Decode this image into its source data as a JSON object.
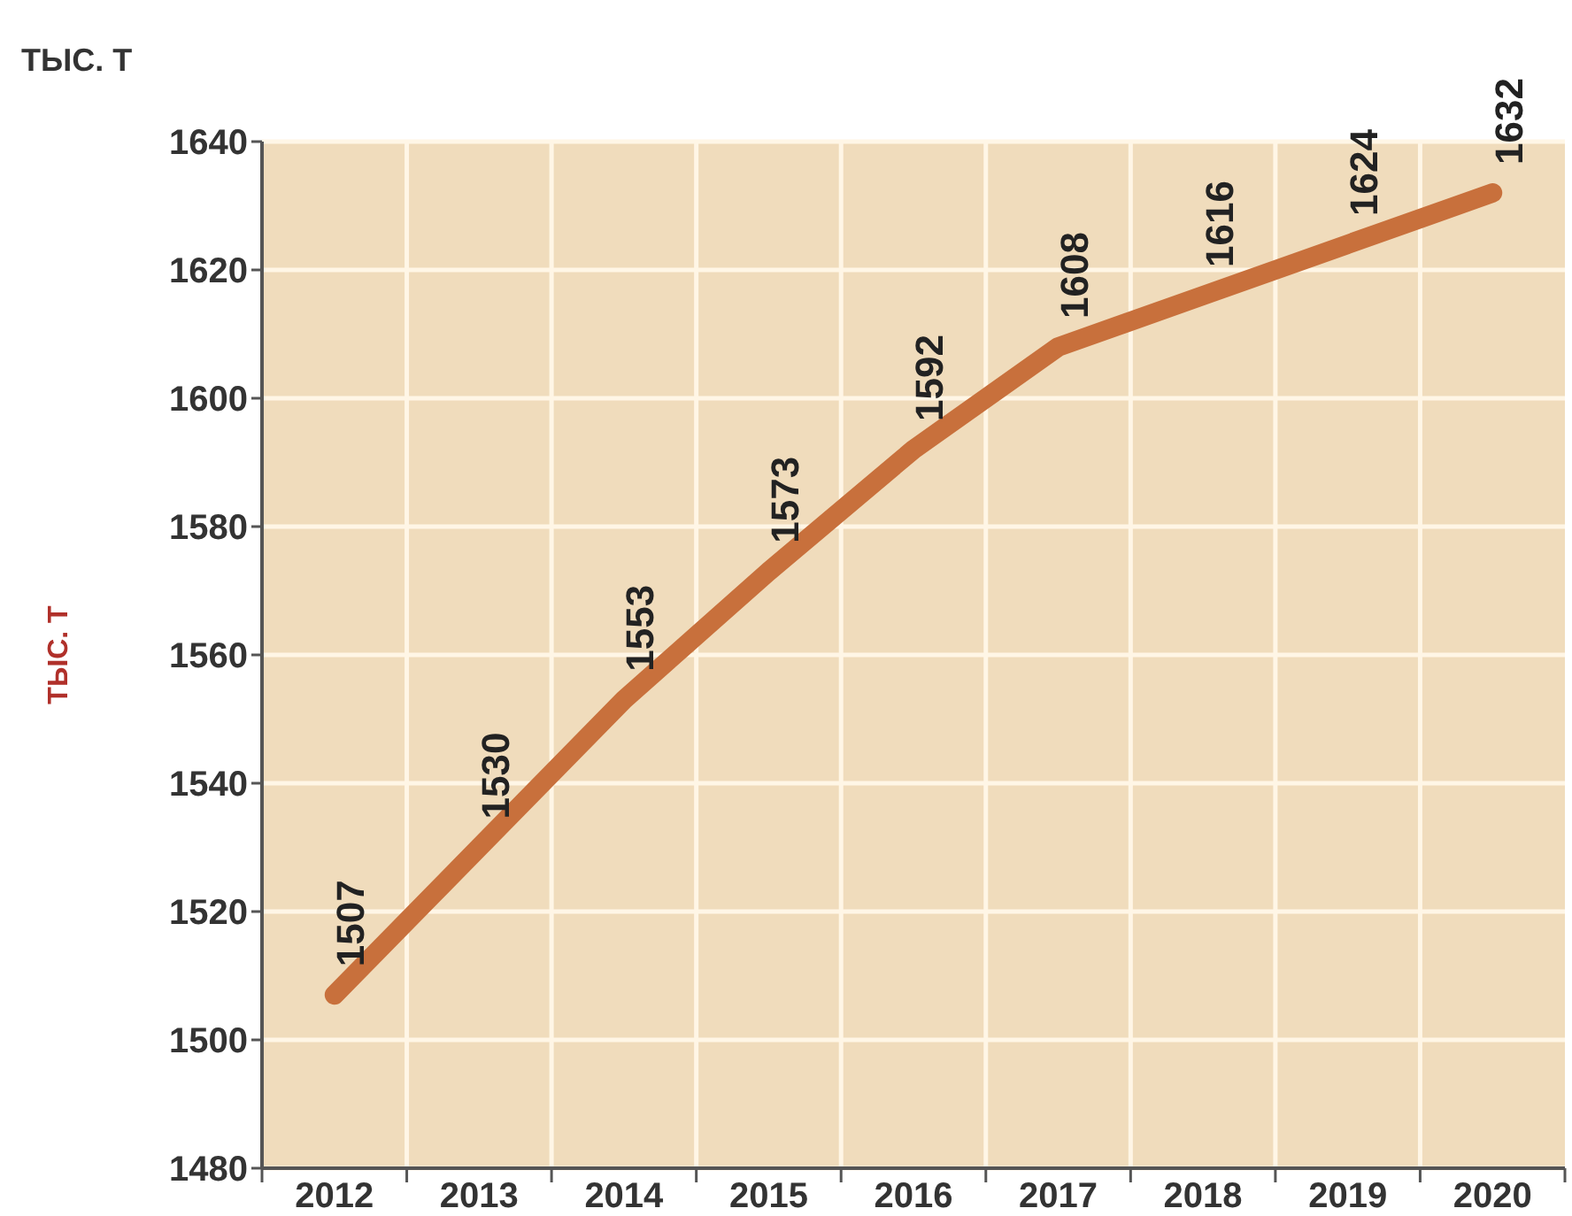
{
  "chart_data": {
    "type": "line",
    "title": "ТЫС. Т",
    "ylabel": "ТЫС. Т",
    "categories": [
      "2012",
      "2013",
      "2014",
      "2015",
      "2016",
      "2017",
      "2018",
      "2019",
      "2020"
    ],
    "series": [
      {
        "color": "#c8703c",
        "values": [
          1507,
          1530,
          1553,
          1573,
          1592,
          1608,
          1616,
          1624,
          1632
        ]
      }
    ],
    "ylim": [
      1480,
      1640
    ],
    "yticks": [
      1480,
      1500,
      1520,
      1540,
      1560,
      1580,
      1600,
      1620,
      1640
    ],
    "grid": true,
    "data_labels": true,
    "marker": "none",
    "line_style": "solid"
  }
}
